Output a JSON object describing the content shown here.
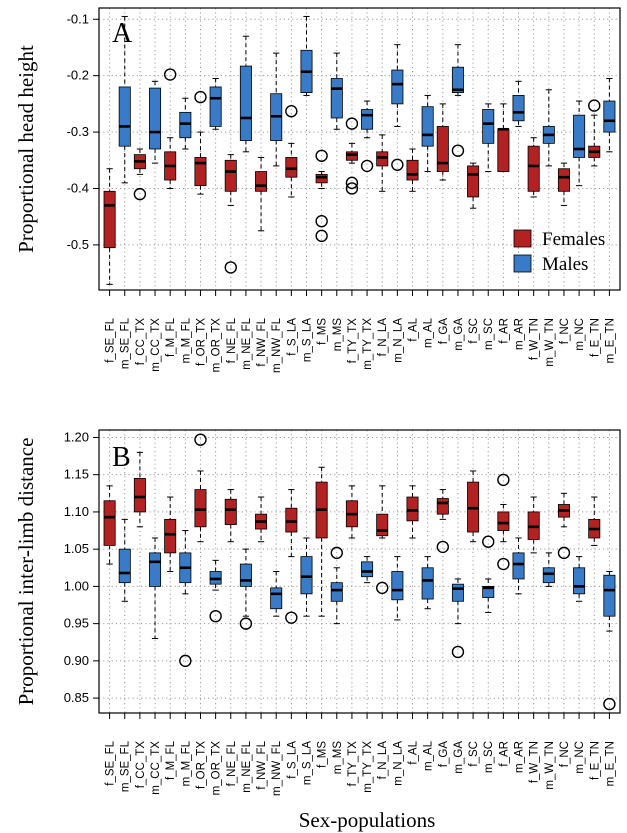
{
  "figure": {
    "xlabel": "Sex-populations"
  },
  "colors": {
    "female": "#b22222",
    "male": "#3a7bc8",
    "grid": "#9a9a9a",
    "axis": "#000000"
  },
  "chart_data": [
    {
      "type": "box",
      "panel_label": "A",
      "ylabel": "Proportional head height",
      "ylim": [
        -0.58,
        -0.08
      ],
      "yticks": [
        -0.1,
        -0.2,
        -0.3,
        -0.4,
        -0.5
      ],
      "ytick_labels": [
        "-0.1",
        "-0.2",
        "-0.3",
        "-0.4",
        "-0.5"
      ],
      "grid": true,
      "legend": {
        "placement": "bottom-right",
        "entries": [
          {
            "label": "Females",
            "group": "female"
          },
          {
            "label": "Males",
            "group": "male"
          }
        ]
      },
      "categories": [
        "f_SE_FL",
        "m_SE_FL",
        "f_CC_TX",
        "m_CC_TX",
        "f_M_FL",
        "m_M_FL",
        "f_OR_TX",
        "m_OR_TX",
        "f_NE_FL",
        "m_NE_FL",
        "f_NW_FL",
        "m_NW_FL",
        "f_S_LA",
        "m_S_LA",
        "f_MS",
        "m_MS",
        "f_TY_TX",
        "m_TY_TX",
        "f_N_LA",
        "m_N_LA",
        "f_AL",
        "m_AL",
        "f_GA",
        "m_GA",
        "f_SC",
        "m_SC",
        "f_AR",
        "m_AR",
        "f_W_TN",
        "m_W_TN",
        "f_NC",
        "m_NC",
        "f_E_TN",
        "m_E_TN"
      ],
      "boxes": [
        {
          "min": -0.57,
          "q1": -0.505,
          "median": -0.43,
          "q3": -0.405,
          "max": -0.365,
          "outliers": []
        },
        {
          "min": -0.39,
          "q1": -0.325,
          "median": -0.29,
          "q3": -0.22,
          "max": -0.095,
          "outliers": []
        },
        {
          "min": -0.375,
          "q1": -0.365,
          "median": -0.352,
          "q3": -0.34,
          "max": -0.33,
          "outliers": [
            -0.41
          ]
        },
        {
          "min": -0.355,
          "q1": -0.33,
          "median": -0.3,
          "q3": -0.222,
          "max": -0.21,
          "outliers": []
        },
        {
          "min": -0.4,
          "q1": -0.385,
          "median": -0.36,
          "q3": -0.335,
          "max": -0.31,
          "outliers": [
            -0.198
          ]
        },
        {
          "min": -0.33,
          "q1": -0.31,
          "median": -0.285,
          "q3": -0.265,
          "max": -0.24,
          "outliers": []
        },
        {
          "min": -0.41,
          "q1": -0.395,
          "median": -0.355,
          "q3": -0.345,
          "max": -0.3,
          "outliers": [
            -0.238
          ]
        },
        {
          "min": -0.295,
          "q1": -0.29,
          "median": -0.24,
          "q3": -0.22,
          "max": -0.205,
          "outliers": []
        },
        {
          "min": -0.43,
          "q1": -0.405,
          "median": -0.37,
          "q3": -0.35,
          "max": -0.34,
          "outliers": [
            -0.54
          ]
        },
        {
          "min": -0.335,
          "q1": -0.315,
          "median": -0.275,
          "q3": -0.183,
          "max": -0.13,
          "outliers": []
        },
        {
          "min": -0.475,
          "q1": -0.405,
          "median": -0.395,
          "q3": -0.37,
          "max": -0.345,
          "outliers": []
        },
        {
          "min": -0.36,
          "q1": -0.315,
          "median": -0.272,
          "q3": -0.232,
          "max": -0.16,
          "outliers": []
        },
        {
          "min": -0.415,
          "q1": -0.38,
          "median": -0.365,
          "q3": -0.345,
          "max": -0.32,
          "outliers": [
            -0.263
          ]
        },
        {
          "min": -0.235,
          "q1": -0.23,
          "median": -0.193,
          "q3": -0.155,
          "max": -0.095,
          "outliers": []
        },
        {
          "min": -0.4,
          "q1": -0.39,
          "median": -0.38,
          "q3": -0.375,
          "max": -0.37,
          "outliers": [
            -0.342,
            -0.458,
            -0.484
          ]
        },
        {
          "min": -0.295,
          "q1": -0.275,
          "median": -0.223,
          "q3": -0.205,
          "max": -0.16,
          "outliers": []
        },
        {
          "min": -0.355,
          "q1": -0.35,
          "median": -0.34,
          "q3": -0.335,
          "max": -0.32,
          "outliers": [
            -0.285,
            -0.39,
            -0.4
          ]
        },
        {
          "min": -0.31,
          "q1": -0.295,
          "median": -0.27,
          "q3": -0.26,
          "max": -0.245,
          "outliers": [
            -0.36
          ]
        },
        {
          "min": -0.405,
          "q1": -0.36,
          "median": -0.345,
          "q3": -0.335,
          "max": -0.305,
          "outliers": []
        },
        {
          "min": -0.29,
          "q1": -0.25,
          "median": -0.215,
          "q3": -0.19,
          "max": -0.145,
          "outliers": [
            -0.358
          ]
        },
        {
          "min": -0.405,
          "q1": -0.385,
          "median": -0.375,
          "q3": -0.35,
          "max": -0.33,
          "outliers": []
        },
        {
          "min": -0.37,
          "q1": -0.325,
          "median": -0.305,
          "q3": -0.255,
          "max": -0.235,
          "outliers": []
        },
        {
          "min": -0.385,
          "q1": -0.37,
          "median": -0.355,
          "q3": -0.29,
          "max": -0.25,
          "outliers": []
        },
        {
          "min": -0.235,
          "q1": -0.23,
          "median": -0.225,
          "q3": -0.185,
          "max": -0.145,
          "outliers": [
            -0.333
          ]
        },
        {
          "min": -0.435,
          "q1": -0.415,
          "median": -0.375,
          "q3": -0.36,
          "max": -0.355,
          "outliers": []
        },
        {
          "min": -0.37,
          "q1": -0.32,
          "median": -0.285,
          "q3": -0.26,
          "max": -0.25,
          "outliers": []
        },
        {
          "min": -0.37,
          "q1": -0.37,
          "median": -0.295,
          "q3": -0.295,
          "max": -0.25,
          "outliers": []
        },
        {
          "min": -0.29,
          "q1": -0.28,
          "median": -0.265,
          "q3": -0.235,
          "max": -0.21,
          "outliers": []
        },
        {
          "min": -0.415,
          "q1": -0.405,
          "median": -0.36,
          "q3": -0.325,
          "max": -0.31,
          "outliers": []
        },
        {
          "min": -0.36,
          "q1": -0.32,
          "median": -0.305,
          "q3": -0.29,
          "max": -0.225,
          "outliers": []
        },
        {
          "min": -0.43,
          "q1": -0.405,
          "median": -0.38,
          "q3": -0.365,
          "max": -0.355,
          "outliers": []
        },
        {
          "min": -0.395,
          "q1": -0.345,
          "median": -0.33,
          "q3": -0.27,
          "max": -0.245,
          "outliers": []
        },
        {
          "min": -0.36,
          "q1": -0.345,
          "median": -0.335,
          "q3": -0.325,
          "max": -0.27,
          "outliers": [
            -0.253
          ]
        },
        {
          "min": -0.335,
          "q1": -0.3,
          "median": -0.28,
          "q3": -0.245,
          "max": -0.205,
          "outliers": []
        }
      ]
    },
    {
      "type": "box",
      "panel_label": "B",
      "ylabel": "Proportional inter-limb distance",
      "ylim": [
        0.83,
        1.21
      ],
      "yticks": [
        0.85,
        0.9,
        0.95,
        1.0,
        1.05,
        1.1,
        1.15,
        1.2
      ],
      "ytick_labels": [
        "0.85",
        "0.90",
        "0.95",
        "1.00",
        "1.05",
        "1.10",
        "1.15",
        "1.20"
      ],
      "grid": true,
      "categories": [
        "f_SE_FL",
        "m_SE_FL",
        "f_CC_TX",
        "m_CC_TX",
        "f_M_FL",
        "m_M_FL",
        "f_OR_TX",
        "m_OR_TX",
        "f_NE_FL",
        "m_NE_FL",
        "f_NW_FL",
        "m_NW_FL",
        "f_S_LA",
        "m_S_LA",
        "f_MS",
        "m_MS",
        "f_TY_TX",
        "m_TY_TX",
        "f_N_LA",
        "m_N_LA",
        "f_AL",
        "m_AL",
        "f_GA",
        "m_GA",
        "f_SC",
        "m_SC",
        "f_AR",
        "m_AR",
        "f_W_TN",
        "m_W_TN",
        "f_NC",
        "m_NC",
        "f_E_TN",
        "m_E_TN"
      ],
      "boxes": [
        {
          "min": 1.03,
          "q1": 1.055,
          "median": 1.093,
          "q3": 1.115,
          "max": 1.135,
          "outliers": []
        },
        {
          "min": 0.98,
          "q1": 1.005,
          "median": 1.018,
          "q3": 1.05,
          "max": 1.09,
          "outliers": []
        },
        {
          "min": 1.08,
          "q1": 1.1,
          "median": 1.12,
          "q3": 1.145,
          "max": 1.18,
          "outliers": []
        },
        {
          "min": 0.93,
          "q1": 1.0,
          "median": 1.033,
          "q3": 1.045,
          "max": 1.065,
          "outliers": []
        },
        {
          "min": 1.02,
          "q1": 1.045,
          "median": 1.07,
          "q3": 1.09,
          "max": 1.12,
          "outliers": []
        },
        {
          "min": 0.99,
          "q1": 1.005,
          "median": 1.025,
          "q3": 1.045,
          "max": 1.075,
          "outliers": [
            0.9
          ]
        },
        {
          "min": 1.06,
          "q1": 1.08,
          "median": 1.103,
          "q3": 1.13,
          "max": 1.155,
          "outliers": [
            1.197
          ]
        },
        {
          "min": 0.995,
          "q1": 1.003,
          "median": 1.01,
          "q3": 1.02,
          "max": 1.035,
          "outliers": [
            0.96
          ]
        },
        {
          "min": 1.06,
          "q1": 1.083,
          "median": 1.103,
          "q3": 1.117,
          "max": 1.13,
          "outliers": []
        },
        {
          "min": 0.96,
          "q1": 1.0,
          "median": 1.008,
          "q3": 1.03,
          "max": 1.05,
          "outliers": [
            0.95
          ]
        },
        {
          "min": 1.06,
          "q1": 1.077,
          "median": 1.087,
          "q3": 1.097,
          "max": 1.12,
          "outliers": []
        },
        {
          "min": 0.96,
          "q1": 0.97,
          "median": 0.99,
          "q3": 0.998,
          "max": 1.02,
          "outliers": []
        },
        {
          "min": 1.04,
          "q1": 1.073,
          "median": 1.087,
          "q3": 1.105,
          "max": 1.13,
          "outliers": [
            0.958
          ]
        },
        {
          "min": 0.96,
          "q1": 0.99,
          "median": 1.013,
          "q3": 1.04,
          "max": 1.065,
          "outliers": []
        },
        {
          "min": 0.96,
          "q1": 1.065,
          "median": 1.103,
          "q3": 1.14,
          "max": 1.16,
          "outliers": []
        },
        {
          "min": 0.95,
          "q1": 0.98,
          "median": 0.995,
          "q3": 1.005,
          "max": 1.025,
          "outliers": [
            1.045
          ]
        },
        {
          "min": 1.065,
          "q1": 1.08,
          "median": 1.097,
          "q3": 1.115,
          "max": 1.135,
          "outliers": []
        },
        {
          "min": 1.005,
          "q1": 1.013,
          "median": 1.02,
          "q3": 1.033,
          "max": 1.04,
          "outliers": []
        },
        {
          "min": 1.065,
          "q1": 1.068,
          "median": 1.075,
          "q3": 1.097,
          "max": 1.135,
          "outliers": [
            0.998
          ]
        },
        {
          "min": 0.955,
          "q1": 0.982,
          "median": 0.995,
          "q3": 1.02,
          "max": 1.04,
          "outliers": []
        },
        {
          "min": 1.065,
          "q1": 1.088,
          "median": 1.102,
          "q3": 1.12,
          "max": 1.135,
          "outliers": []
        },
        {
          "min": 0.97,
          "q1": 0.983,
          "median": 1.008,
          "q3": 1.025,
          "max": 1.04,
          "outliers": []
        },
        {
          "min": 1.09,
          "q1": 1.097,
          "median": 1.112,
          "q3": 1.118,
          "max": 1.13,
          "outliers": [
            1.053
          ]
        },
        {
          "min": 0.95,
          "q1": 0.98,
          "median": 0.997,
          "q3": 1.003,
          "max": 1.01,
          "outliers": [
            0.912
          ]
        },
        {
          "min": 1.06,
          "q1": 1.073,
          "median": 1.105,
          "q3": 1.14,
          "max": 1.155,
          "outliers": []
        },
        {
          "min": 0.965,
          "q1": 0.985,
          "median": 0.998,
          "q3": 1.0,
          "max": 1.01,
          "outliers": [
            1.06
          ]
        },
        {
          "min": 1.06,
          "q1": 1.075,
          "median": 1.085,
          "q3": 1.1,
          "max": 1.11,
          "outliers": [
            1.143,
            1.03
          ]
        },
        {
          "min": 0.99,
          "q1": 1.01,
          "median": 1.03,
          "q3": 1.045,
          "max": 1.065,
          "outliers": []
        },
        {
          "min": 1.045,
          "q1": 1.063,
          "median": 1.08,
          "q3": 1.1,
          "max": 1.12,
          "outliers": []
        },
        {
          "min": 1.0,
          "q1": 1.005,
          "median": 1.017,
          "q3": 1.025,
          "max": 1.045,
          "outliers": []
        },
        {
          "min": 1.08,
          "q1": 1.093,
          "median": 1.102,
          "q3": 1.11,
          "max": 1.125,
          "outliers": [
            1.045
          ]
        },
        {
          "min": 0.98,
          "q1": 0.99,
          "median": 1.0,
          "q3": 1.025,
          "max": 1.04,
          "outliers": []
        },
        {
          "min": 1.055,
          "q1": 1.065,
          "median": 1.077,
          "q3": 1.09,
          "max": 1.12,
          "outliers": []
        },
        {
          "min": 0.94,
          "q1": 0.96,
          "median": 0.995,
          "q3": 1.015,
          "max": 1.02,
          "outliers": [
            0.842
          ]
        }
      ]
    }
  ]
}
